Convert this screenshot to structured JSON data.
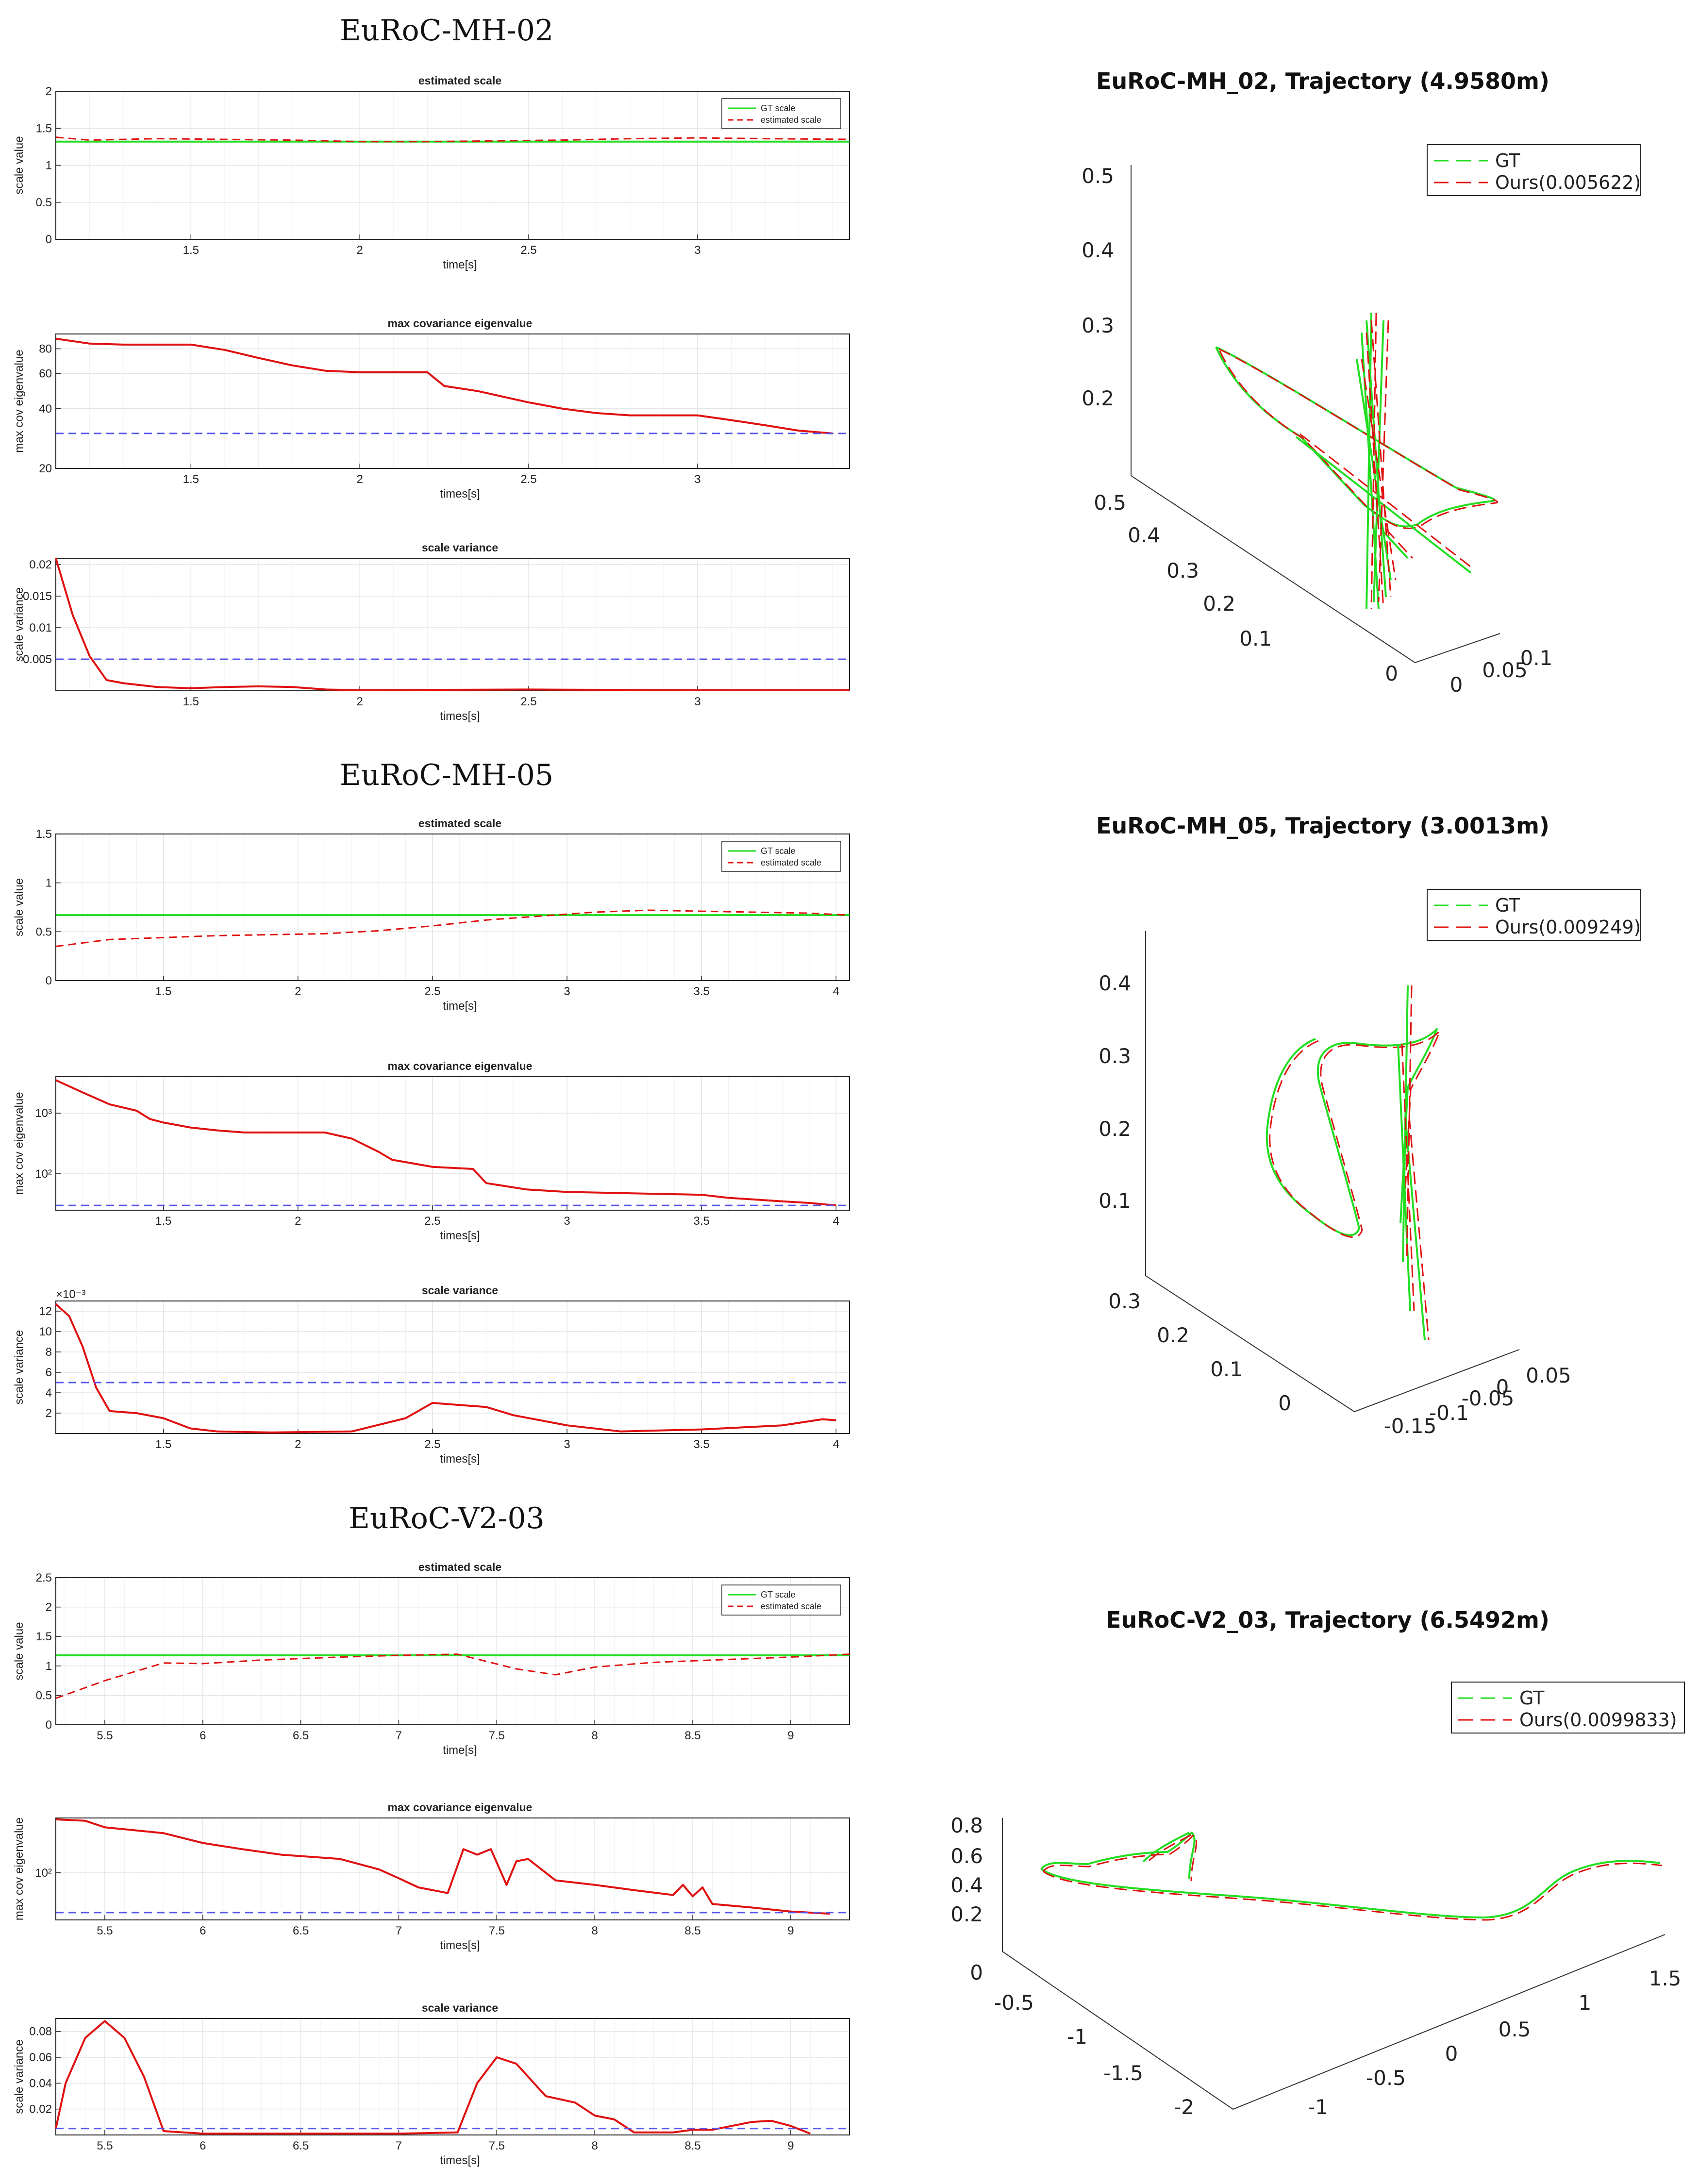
{
  "colors": {
    "gt": "#22dd22",
    "est": "#e01010",
    "thresh": "#5555ee",
    "grid": "#e4e4e4",
    "axis": "#222222"
  },
  "sections": [
    {
      "heading": "EuRoC-MH-02"
    },
    {
      "heading": "EuRoC-MH-05"
    },
    {
      "heading": "EuRoC-V2-03"
    }
  ],
  "chart_data": [
    {
      "type": "line",
      "id": "mh02-scale",
      "title": "estimated scale",
      "xlabel": "time[s]",
      "ylabel": "scale value",
      "xlim": [
        1.1,
        3.45
      ],
      "ylim": [
        0,
        2
      ],
      "yscale": "linear",
      "xticks": [
        1.5,
        2,
        2.5,
        3
      ],
      "xtick_labels": [
        "1.5",
        "2",
        "2.5",
        "3"
      ],
      "yticks": [
        0,
        0.5,
        1,
        1.5,
        2
      ],
      "ytick_labels": [
        "0",
        "0.5",
        "1",
        "1.5",
        "2"
      ],
      "legend": {
        "position": "top-right",
        "entries": [
          "GT scale",
          "estimated scale"
        ]
      },
      "series": [
        {
          "name": "GT scale",
          "style": "solid",
          "color": "gt",
          "x": [
            1.1,
            3.45
          ],
          "y": [
            1.32,
            1.32
          ]
        },
        {
          "name": "estimated scale",
          "style": "dashed",
          "color": "est",
          "x": [
            1.1,
            1.2,
            1.4,
            1.6,
            1.8,
            2.0,
            2.2,
            2.4,
            2.6,
            2.8,
            3.0,
            3.2,
            3.45
          ],
          "y": [
            1.38,
            1.34,
            1.36,
            1.35,
            1.34,
            1.32,
            1.32,
            1.33,
            1.34,
            1.36,
            1.37,
            1.36,
            1.35
          ]
        }
      ]
    },
    {
      "type": "line",
      "id": "mh02-eig",
      "title": "max covariance eigenvalue",
      "xlabel": "times[s]",
      "ylabel": "max cov eigenvalue",
      "xlim": [
        1.1,
        3.45
      ],
      "ylim": [
        20,
        95
      ],
      "yscale": "log",
      "xticks": [
        1.5,
        2,
        2.5,
        3
      ],
      "xtick_labels": [
        "1.5",
        "2",
        "2.5",
        "3"
      ],
      "yticks": [
        20,
        40,
        60,
        80
      ],
      "ytick_labels": [
        "20",
        "40",
        "60",
        "80"
      ],
      "series": [
        {
          "name": "max covariance eigenvalue",
          "style": "solid",
          "color": "est",
          "x": [
            1.1,
            1.2,
            1.3,
            1.5,
            1.6,
            1.7,
            1.8,
            1.9,
            2.0,
            2.1,
            2.2,
            2.25,
            2.35,
            2.5,
            2.6,
            2.7,
            2.8,
            3.0,
            3.1,
            3.2,
            3.3,
            3.4
          ],
          "y": [
            90,
            85,
            84,
            84,
            79,
            72,
            66,
            62,
            61,
            61,
            61,
            52,
            49,
            43,
            40,
            38,
            37,
            37,
            35,
            33,
            31,
            30
          ]
        },
        {
          "name": "threshold",
          "style": "dashed",
          "color": "thresh",
          "x": [
            1.1,
            3.45
          ],
          "y": [
            30,
            30
          ]
        }
      ]
    },
    {
      "type": "line",
      "id": "mh02-var",
      "title": "scale variance",
      "xlabel": "times[s]",
      "ylabel": "scale variance",
      "xlim": [
        1.1,
        3.45
      ],
      "ylim": [
        0,
        0.021
      ],
      "yscale": "linear",
      "xticks": [
        1.5,
        2,
        2.5,
        3
      ],
      "xtick_labels": [
        "1.5",
        "2",
        "2.5",
        "3"
      ],
      "yticks": [
        0.005,
        0.01,
        0.015,
        0.02
      ],
      "ytick_labels": [
        "0.005",
        "0.01",
        "0.015",
        "0.02"
      ],
      "series": [
        {
          "name": "scale variance",
          "style": "solid",
          "color": "est",
          "x": [
            1.1,
            1.15,
            1.2,
            1.25,
            1.3,
            1.4,
            1.5,
            1.6,
            1.7,
            1.8,
            1.9,
            2.0,
            2.5,
            3.0,
            3.45
          ],
          "y": [
            0.021,
            0.012,
            0.0055,
            0.0017,
            0.0012,
            0.0006,
            0.0004,
            0.0006,
            0.0007,
            0.0006,
            0.0002,
            0.0001,
            0.0002,
            0.0001,
            0.0001
          ]
        },
        {
          "name": "threshold",
          "style": "dashed",
          "color": "thresh",
          "x": [
            1.1,
            3.45
          ],
          "y": [
            0.005,
            0.005
          ]
        }
      ]
    },
    {
      "type": "line",
      "id": "mh05-scale",
      "title": "estimated scale",
      "xlabel": "time[s]",
      "ylabel": "scale value",
      "xlim": [
        1.1,
        4.05
      ],
      "ylim": [
        0,
        1.5
      ],
      "yscale": "linear",
      "xticks": [
        1.5,
        2,
        2.5,
        3,
        3.5,
        4
      ],
      "xtick_labels": [
        "1.5",
        "2",
        "2.5",
        "3",
        "3.5",
        "4"
      ],
      "yticks": [
        0,
        0.5,
        1,
        1.5
      ],
      "ytick_labels": [
        "0",
        "0.5",
        "1",
        "1.5"
      ],
      "legend": {
        "position": "top-right",
        "entries": [
          "GT scale",
          "estimated scale"
        ]
      },
      "series": [
        {
          "name": "GT scale",
          "style": "solid",
          "color": "gt",
          "x": [
            1.1,
            4.05
          ],
          "y": [
            0.67,
            0.67
          ]
        },
        {
          "name": "estimated scale",
          "style": "dashed",
          "color": "est",
          "x": [
            1.1,
            1.3,
            1.5,
            1.7,
            1.9,
            2.1,
            2.3,
            2.5,
            2.7,
            2.9,
            3.1,
            3.3,
            3.5,
            3.7,
            3.9,
            4.05
          ],
          "y": [
            0.35,
            0.42,
            0.44,
            0.46,
            0.47,
            0.48,
            0.51,
            0.56,
            0.62,
            0.66,
            0.7,
            0.72,
            0.71,
            0.7,
            0.69,
            0.67
          ]
        }
      ]
    },
    {
      "type": "line",
      "id": "mh05-eig",
      "title": "max covariance eigenvalue",
      "xlabel": "times[s]",
      "ylabel": "max cov eigenvalue",
      "xlim": [
        1.1,
        4.05
      ],
      "ylim": [
        25,
        4000
      ],
      "yscale": "log",
      "xticks": [
        1.5,
        2,
        2.5,
        3,
        3.5,
        4
      ],
      "xtick_labels": [
        "1.5",
        "2",
        "2.5",
        "3",
        "3.5",
        "4"
      ],
      "yticks": [
        100,
        1000
      ],
      "ytick_labels": [
        "10²",
        "10³"
      ],
      "series": [
        {
          "name": "max covariance eigenvalue",
          "style": "solid",
          "color": "est",
          "x": [
            1.1,
            1.2,
            1.3,
            1.4,
            1.45,
            1.5,
            1.6,
            1.7,
            1.8,
            2.1,
            2.2,
            2.3,
            2.35,
            2.5,
            2.65,
            2.7,
            2.85,
            3.0,
            3.2,
            3.5,
            3.6,
            3.8,
            3.9,
            4.0
          ],
          "y": [
            3500,
            2200,
            1400,
            1100,
            800,
            700,
            580,
            520,
            480,
            480,
            380,
            230,
            170,
            130,
            120,
            70,
            55,
            50,
            48,
            45,
            40,
            35,
            33,
            30
          ]
        },
        {
          "name": "threshold",
          "style": "dashed",
          "color": "thresh",
          "x": [
            1.1,
            4.05
          ],
          "y": [
            30,
            30
          ]
        }
      ]
    },
    {
      "type": "line",
      "id": "mh05-var",
      "title": "scale variance",
      "xlabel": "times[s]",
      "ylabel": "scale variance",
      "xlim": [
        1.1,
        4.05
      ],
      "ylim": [
        0,
        0.013
      ],
      "yscale": "linear",
      "xticks": [
        1.5,
        2,
        2.5,
        3,
        3.5,
        4
      ],
      "xtick_labels": [
        "1.5",
        "2",
        "2.5",
        "3",
        "3.5",
        "4"
      ],
      "yticks": [
        0.002,
        0.004,
        0.006,
        0.008,
        0.01,
        0.012
      ],
      "ytick_labels": [
        "2",
        "4",
        "6",
        "8",
        "10",
        "12"
      ],
      "exponent_label": "×10⁻³",
      "series": [
        {
          "name": "scale variance",
          "style": "solid",
          "color": "est",
          "x": [
            1.1,
            1.15,
            1.2,
            1.25,
            1.3,
            1.4,
            1.5,
            1.6,
            1.7,
            1.9,
            2.2,
            2.4,
            2.5,
            2.6,
            2.7,
            2.8,
            3.0,
            3.2,
            3.5,
            3.8,
            3.95,
            4.0
          ],
          "y": [
            0.0127,
            0.0115,
            0.0085,
            0.0045,
            0.0022,
            0.002,
            0.0015,
            0.0005,
            0.0002,
            0.0001,
            0.0002,
            0.0015,
            0.003,
            0.0028,
            0.0026,
            0.0018,
            0.0008,
            0.0002,
            0.0004,
            0.0008,
            0.0014,
            0.0013
          ]
        },
        {
          "name": "threshold",
          "style": "dashed",
          "color": "thresh",
          "x": [
            1.1,
            4.05
          ],
          "y": [
            0.005,
            0.005
          ]
        }
      ]
    },
    {
      "type": "line",
      "id": "v203-scale",
      "title": "estimated scale",
      "xlabel": "time[s]",
      "ylabel": "scale value",
      "xlim": [
        5.25,
        9.3
      ],
      "ylim": [
        0,
        2.5
      ],
      "yscale": "linear",
      "xticks": [
        5.5,
        6,
        6.5,
        7,
        7.5,
        8,
        8.5,
        9
      ],
      "xtick_labels": [
        "5.5",
        "6",
        "6.5",
        "7",
        "7.5",
        "8",
        "8.5",
        "9"
      ],
      "yticks": [
        0,
        0.5,
        1,
        1.5,
        2,
        2.5
      ],
      "ytick_labels": [
        "0",
        "0.5",
        "1",
        "1.5",
        "2",
        "2.5"
      ],
      "legend": {
        "position": "top-right",
        "entries": [
          "GT scale",
          "estimated scale"
        ]
      },
      "series": [
        {
          "name": "GT scale",
          "style": "solid",
          "color": "gt",
          "x": [
            5.25,
            9.3
          ],
          "y": [
            1.18,
            1.18
          ]
        },
        {
          "name": "estimated scale",
          "style": "dashed",
          "color": "est",
          "x": [
            5.25,
            5.5,
            5.8,
            6.0,
            6.3,
            6.7,
            7.0,
            7.3,
            7.6,
            7.8,
            8.0,
            8.3,
            8.6,
            9.0,
            9.3
          ],
          "y": [
            0.45,
            0.75,
            1.05,
            1.04,
            1.1,
            1.15,
            1.18,
            1.2,
            0.95,
            0.85,
            0.98,
            1.06,
            1.1,
            1.15,
            1.2
          ]
        }
      ]
    },
    {
      "type": "line",
      "id": "v203-eig",
      "title": "max covariance eigenvalue",
      "xlabel": "times[s]",
      "ylabel": "max cov eigenvalue",
      "xlim": [
        5.25,
        9.3
      ],
      "ylim": [
        25,
        500
      ],
      "yscale": "log",
      "xticks": [
        5.5,
        6,
        6.5,
        7,
        7.5,
        8,
        8.5,
        9
      ],
      "xtick_labels": [
        "5.5",
        "6",
        "6.5",
        "7",
        "7.5",
        "8",
        "8.5",
        "9"
      ],
      "yticks": [
        100
      ],
      "ytick_labels": [
        "10²"
      ],
      "series": [
        {
          "name": "max covariance eigenvalue",
          "style": "solid",
          "color": "est",
          "x": [
            5.25,
            5.4,
            5.5,
            5.8,
            6.0,
            6.2,
            6.4,
            6.7,
            6.9,
            7.0,
            7.1,
            7.25,
            7.33,
            7.4,
            7.47,
            7.55,
            7.6,
            7.66,
            7.8,
            8.0,
            8.2,
            8.4,
            8.45,
            8.5,
            8.55,
            8.6,
            8.8,
            9.0,
            9.2
          ],
          "y": [
            480,
            460,
            380,
            320,
            240,
            200,
            170,
            150,
            110,
            85,
            65,
            55,
            200,
            170,
            200,
            70,
            140,
            150,
            80,
            70,
            60,
            52,
            70,
            50,
            65,
            40,
            36,
            32,
            30
          ]
        },
        {
          "name": "threshold",
          "style": "dashed",
          "color": "thresh",
          "x": [
            5.25,
            9.3
          ],
          "y": [
            31,
            31
          ]
        }
      ]
    },
    {
      "type": "line",
      "id": "v203-var",
      "title": "scale variance",
      "xlabel": "times[s]",
      "ylabel": "scale variance",
      "xlim": [
        5.25,
        9.3
      ],
      "ylim": [
        0,
        0.09
      ],
      "yscale": "linear",
      "xticks": [
        5.5,
        6,
        6.5,
        7,
        7.5,
        8,
        8.5,
        9
      ],
      "xtick_labels": [
        "5.5",
        "6",
        "6.5",
        "7",
        "7.5",
        "8",
        "8.5",
        "9"
      ],
      "yticks": [
        0.02,
        0.04,
        0.06,
        0.08
      ],
      "ytick_labels": [
        "0.02",
        "0.04",
        "0.06",
        "0.08"
      ],
      "series": [
        {
          "name": "scale variance",
          "style": "solid",
          "color": "est",
          "x": [
            5.25,
            5.3,
            5.4,
            5.5,
            5.6,
            5.7,
            5.8,
            6.0,
            7.0,
            7.3,
            7.4,
            7.5,
            7.6,
            7.75,
            7.9,
            8.0,
            8.1,
            8.2,
            8.4,
            8.5,
            8.6,
            8.8,
            8.9,
            9.0,
            9.1
          ],
          "y": [
            0.005,
            0.04,
            0.075,
            0.088,
            0.075,
            0.045,
            0.003,
            0.001,
            0.001,
            0.002,
            0.04,
            0.06,
            0.055,
            0.03,
            0.025,
            0.015,
            0.012,
            0.002,
            0.002,
            0.004,
            0.004,
            0.01,
            0.011,
            0.007,
            0.001
          ]
        },
        {
          "name": "threshold",
          "style": "dashed",
          "color": "thresh",
          "x": [
            5.25,
            9.3
          ],
          "y": [
            0.005,
            0.005
          ]
        }
      ]
    },
    {
      "type": "line3d",
      "id": "mh02-traj",
      "title": "EuRoC-MH_02, Trajectory (4.9580m)",
      "legend": {
        "position": "top-right",
        "entries": [
          "GT",
          "Ours(0.005622)"
        ]
      },
      "z_ticks": [
        "0.5",
        "0.4",
        "0.3",
        "0.2"
      ],
      "y_ticks": [
        "0.5",
        "0.4",
        "0.3",
        "0.2",
        "0.1",
        "0"
      ],
      "x_ticks": [
        "0",
        "0.05",
        "0.1"
      ]
    },
    {
      "type": "line3d",
      "id": "mh05-traj",
      "title": "EuRoC-MH_05, Trajectory (3.0013m)",
      "legend": {
        "position": "top-right",
        "entries": [
          "GT",
          "Ours(0.009249)"
        ]
      },
      "z_ticks": [
        "0.4",
        "0.3",
        "0.2",
        "0.1"
      ],
      "y_ticks": [
        "0.3",
        "0.2",
        "0.1",
        "0"
      ],
      "x_ticks": [
        "-0.15",
        "-0.1",
        "-0.05",
        "0",
        "0.05"
      ]
    },
    {
      "type": "line3d",
      "id": "v203-traj",
      "title": "EuRoC-V2_03, Trajectory (6.5492m)",
      "legend": {
        "position": "top-right",
        "entries": [
          "GT",
          "Ours(0.0099833)"
        ]
      },
      "z_ticks": [
        "0.8",
        "0.6",
        "0.4",
        "0.2",
        "0"
      ],
      "y_ticks": [
        "-0.5",
        "-1",
        "-1.5",
        "-2"
      ],
      "x_ticks": [
        "-1",
        "-0.5",
        "0",
        "0.5",
        "1",
        "1.5"
      ]
    }
  ]
}
